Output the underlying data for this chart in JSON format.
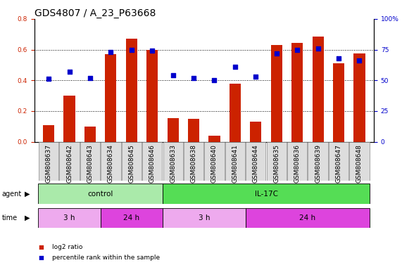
{
  "title": "GDS4807 / A_23_P63668",
  "samples": [
    "GSM808637",
    "GSM808642",
    "GSM808643",
    "GSM808634",
    "GSM808645",
    "GSM808646",
    "GSM808633",
    "GSM808638",
    "GSM808640",
    "GSM808641",
    "GSM808644",
    "GSM808635",
    "GSM808636",
    "GSM808639",
    "GSM808647",
    "GSM808648"
  ],
  "log2_ratio": [
    0.11,
    0.3,
    0.1,
    0.57,
    0.67,
    0.6,
    0.155,
    0.15,
    0.04,
    0.38,
    0.13,
    0.63,
    0.645,
    0.685,
    0.51,
    0.575
  ],
  "percentile_rank": [
    51,
    57,
    52,
    73,
    75,
    74,
    54,
    52,
    50,
    61,
    53,
    72,
    75,
    76,
    68,
    66
  ],
  "bar_color": "#cc2200",
  "dot_color": "#0000cc",
  "ylim_left": [
    0.0,
    0.8
  ],
  "ylim_right": [
    0,
    100
  ],
  "yticks_left": [
    0.0,
    0.2,
    0.4,
    0.6,
    0.8
  ],
  "yticks_right": [
    0,
    25,
    50,
    75,
    100
  ],
  "yticklabels_right": [
    "0",
    "25",
    "50",
    "75",
    "100%"
  ],
  "agent_groups": [
    {
      "label": "control",
      "start": 0,
      "end": 6,
      "color": "#aaeaaa"
    },
    {
      "label": "IL-17C",
      "start": 6,
      "end": 16,
      "color": "#55dd55"
    }
  ],
  "time_groups": [
    {
      "label": "3 h",
      "start": 0,
      "end": 3,
      "color": "#eeaaee"
    },
    {
      "label": "24 h",
      "start": 3,
      "end": 6,
      "color": "#dd44dd"
    },
    {
      "label": "3 h",
      "start": 6,
      "end": 10,
      "color": "#eeaaee"
    },
    {
      "label": "24 h",
      "start": 10,
      "end": 16,
      "color": "#dd44dd"
    }
  ],
  "legend_items": [
    {
      "color": "#cc2200",
      "label": "log2 ratio"
    },
    {
      "color": "#0000cc",
      "label": "percentile rank within the sample"
    }
  ],
  "bg_color": "#ffffff",
  "title_fontsize": 10,
  "tick_fontsize": 6.5,
  "bar_width": 0.55,
  "sample_bg": "#dddddd",
  "sample_border": "#888888"
}
